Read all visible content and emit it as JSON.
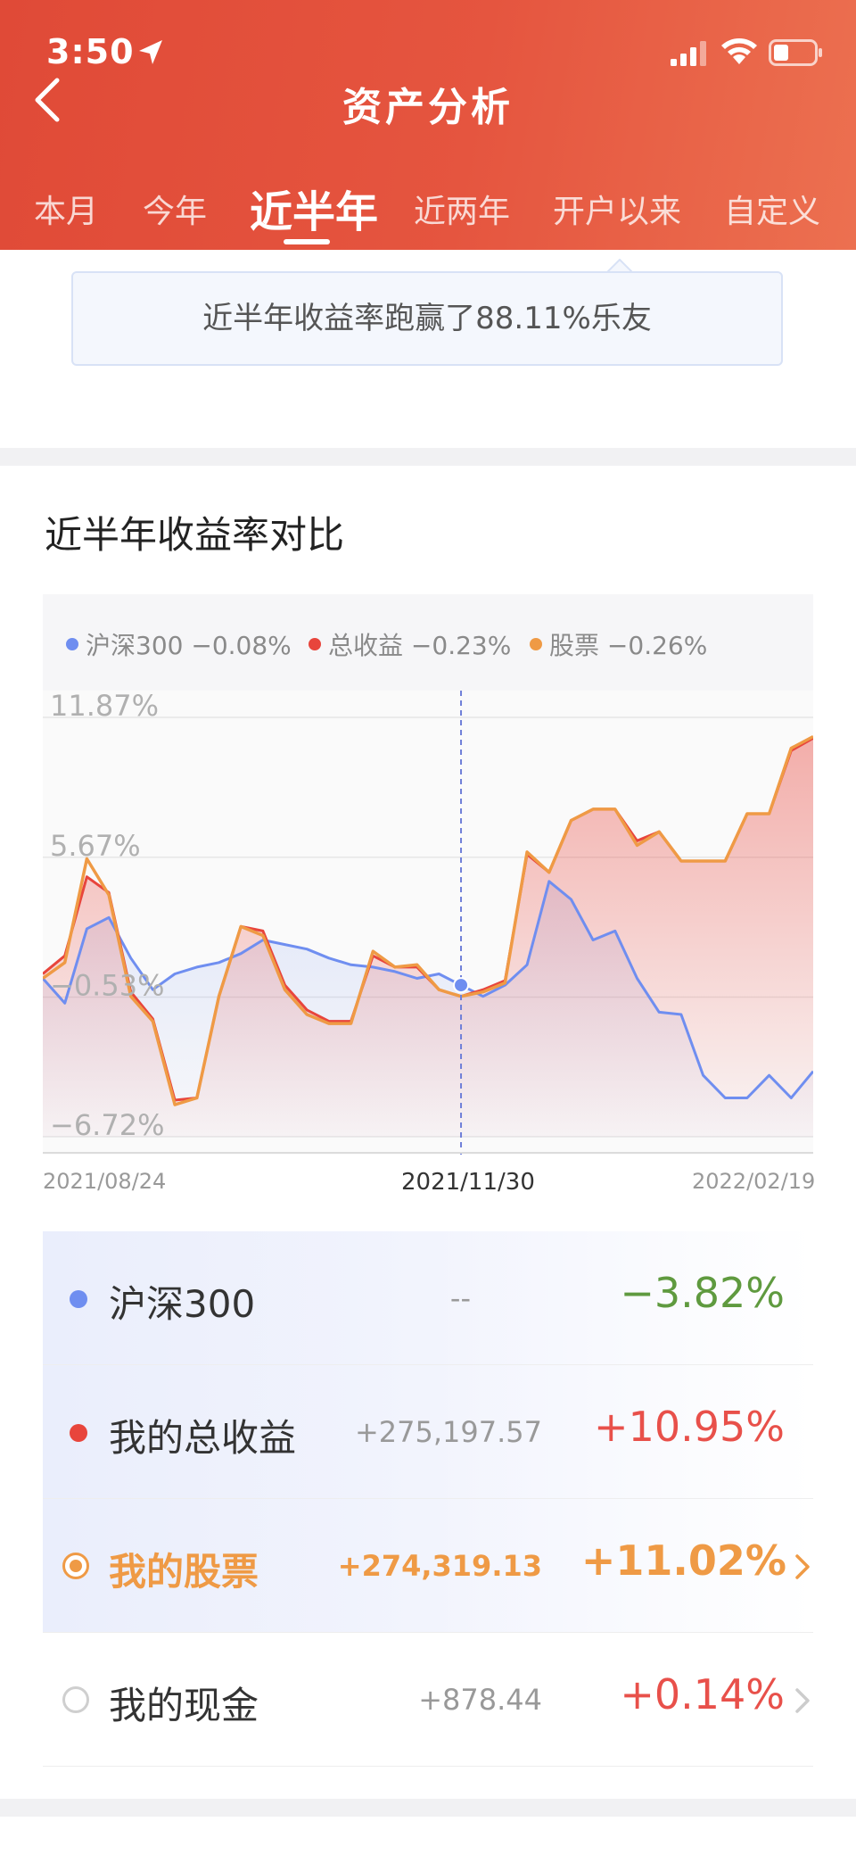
{
  "status": {
    "time": "3:50",
    "icons": [
      "location-arrow-icon",
      "signal-icon",
      "wifi-icon",
      "battery-icon"
    ]
  },
  "nav": {
    "title": "资产分析",
    "back_icon": "chevron-left-icon"
  },
  "tabs": [
    {
      "label": "本月"
    },
    {
      "label": "今年"
    },
    {
      "label": "近半年",
      "active": true
    },
    {
      "label": "近两年"
    },
    {
      "label": "开户以来"
    },
    {
      "label": "自定义"
    }
  ],
  "banner": {
    "text": "近半年收益率跑赢了88.11%乐友"
  },
  "section": {
    "title": "近半年收益率对比"
  },
  "legend": [
    {
      "name": "沪深300",
      "value": "−0.08%",
      "color": "#6f8ef0"
    },
    {
      "name": "总收益",
      "value": "−0.23%",
      "color": "#e8453c"
    },
    {
      "name": "股票",
      "value": "−0.26%",
      "color": "#ef9a45"
    }
  ],
  "chart": {
    "y_ticks": [
      "11.87%",
      "5.67%",
      "−0.53%",
      "−6.72%"
    ],
    "x_start": "2021/08/24",
    "x_cursor": "2021/11/30",
    "x_end": "2022/02/19"
  },
  "chart_data": {
    "type": "line",
    "ylim": [
      -6.72,
      11.87
    ],
    "x_range": [
      "2021/08/24",
      "2022/02/19"
    ],
    "cursor": "2021/11/30",
    "series": [
      {
        "name": "沪深300",
        "color": "#6f8ef0",
        "values": [
          0.3,
          -0.8,
          2.5,
          3.0,
          1.2,
          -0.2,
          0.5,
          0.8,
          1.0,
          1.4,
          2.0,
          1.8,
          1.6,
          1.2,
          0.9,
          0.8,
          0.6,
          0.3,
          0.5,
          0.0,
          -0.5,
          0.0,
          0.9,
          4.6,
          3.8,
          2.0,
          2.4,
          0.3,
          -1.2,
          -1.3,
          -4.0,
          -5.0,
          -5.0,
          -4.0,
          -5.0,
          -3.82
        ]
      },
      {
        "name": "总收益",
        "color": "#e8453c",
        "values": [
          0.5,
          1.3,
          4.8,
          4.1,
          -0.3,
          -1.5,
          -5.1,
          -5.0,
          -0.5,
          2.6,
          2.4,
          0.0,
          -1.1,
          -1.6,
          -1.6,
          1.3,
          0.8,
          0.8,
          -0.2,
          -0.5,
          -0.2,
          0.2,
          5.8,
          5.0,
          7.3,
          7.8,
          7.8,
          6.4,
          6.8,
          5.5,
          5.5,
          5.5,
          7.6,
          7.6,
          10.4,
          10.95
        ]
      },
      {
        "name": "股票",
        "color": "#ef9a45",
        "values": [
          0.3,
          1.0,
          5.6,
          4.0,
          -0.5,
          -1.6,
          -5.3,
          -5.0,
          -0.5,
          2.6,
          2.2,
          -0.2,
          -1.3,
          -1.7,
          -1.7,
          1.5,
          0.8,
          0.9,
          -0.2,
          -0.5,
          -0.3,
          0.1,
          5.9,
          5.0,
          7.3,
          7.8,
          7.8,
          6.2,
          6.8,
          5.5,
          5.5,
          5.5,
          7.6,
          7.6,
          10.5,
          11.02
        ]
      }
    ]
  },
  "rows": [
    {
      "name": "沪深300",
      "amount": "--",
      "pct": "−3.82%",
      "color": "#5f9a3f",
      "dot": "#6f8ef0"
    },
    {
      "name": "我的总收益",
      "amount": "+275,197.57",
      "pct": "+10.95%",
      "color": "#e8504a",
      "dot": "#e8453c"
    },
    {
      "name": "我的股票",
      "amount": "+274,319.13",
      "pct": "+11.02%",
      "color": "#ef9a45"
    },
    {
      "name": "我的现金",
      "amount": "+878.44",
      "pct": "+0.14%",
      "color": "#e8504a"
    }
  ]
}
